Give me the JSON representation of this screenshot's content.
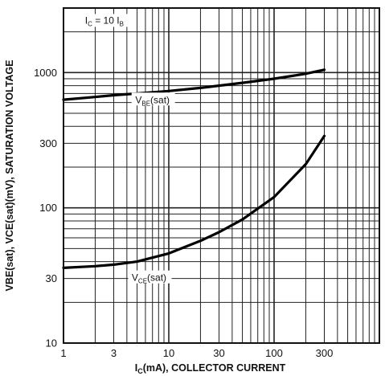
{
  "chart_data": {
    "type": "line",
    "title": "",
    "xlabel": "IC(mA), COLLECTOR CURRENT",
    "xlabel_main": "I",
    "xlabel_sub": "C",
    "xlabel_rest": "(mA), COLLECTOR CURRENT",
    "ylabel": "VBE(sat), VCE(sat)(mV), SATURATION VOLTAGE",
    "x_scale": "log",
    "y_scale": "log",
    "xlim": [
      1,
      1000
    ],
    "ylim": [
      10,
      3000
    ],
    "x_tick_labels": [
      "1",
      "3",
      "10",
      "30",
      "100",
      "300"
    ],
    "x_tick_values": [
      1,
      3,
      10,
      30,
      100,
      300
    ],
    "y_tick_labels": [
      "10",
      "30",
      "100",
      "300",
      "1000"
    ],
    "y_tick_values": [
      10,
      30,
      100,
      300,
      1000
    ],
    "grid": true,
    "annotations": [
      {
        "text": "IC = 10 IB",
        "main": "I",
        "sub1": "C",
        "mid": " = 10 I",
        "sub2": "B",
        "x": 1.6,
        "y": 2300
      }
    ],
    "series": [
      {
        "name": "VBE(sat)",
        "label_main": "V",
        "label_sub": "BE",
        "label_rest": "(sat)",
        "label_at": {
          "x": 7,
          "y": 620
        },
        "x": [
          1,
          2,
          3,
          5,
          10,
          20,
          30,
          50,
          100,
          200,
          300
        ],
        "y": [
          630,
          660,
          680,
          700,
          730,
          770,
          800,
          840,
          900,
          980,
          1050
        ]
      },
      {
        "name": "VCE(sat)",
        "label_main": "V",
        "label_sub": "CE",
        "label_rest": "(sat)",
        "label_at": {
          "x": 6.5,
          "y": 30
        },
        "x": [
          1,
          2,
          3,
          5,
          10,
          20,
          30,
          50,
          100,
          200,
          300
        ],
        "y": [
          36,
          37,
          38,
          40,
          46,
          57,
          66,
          82,
          120,
          210,
          340
        ]
      }
    ]
  }
}
